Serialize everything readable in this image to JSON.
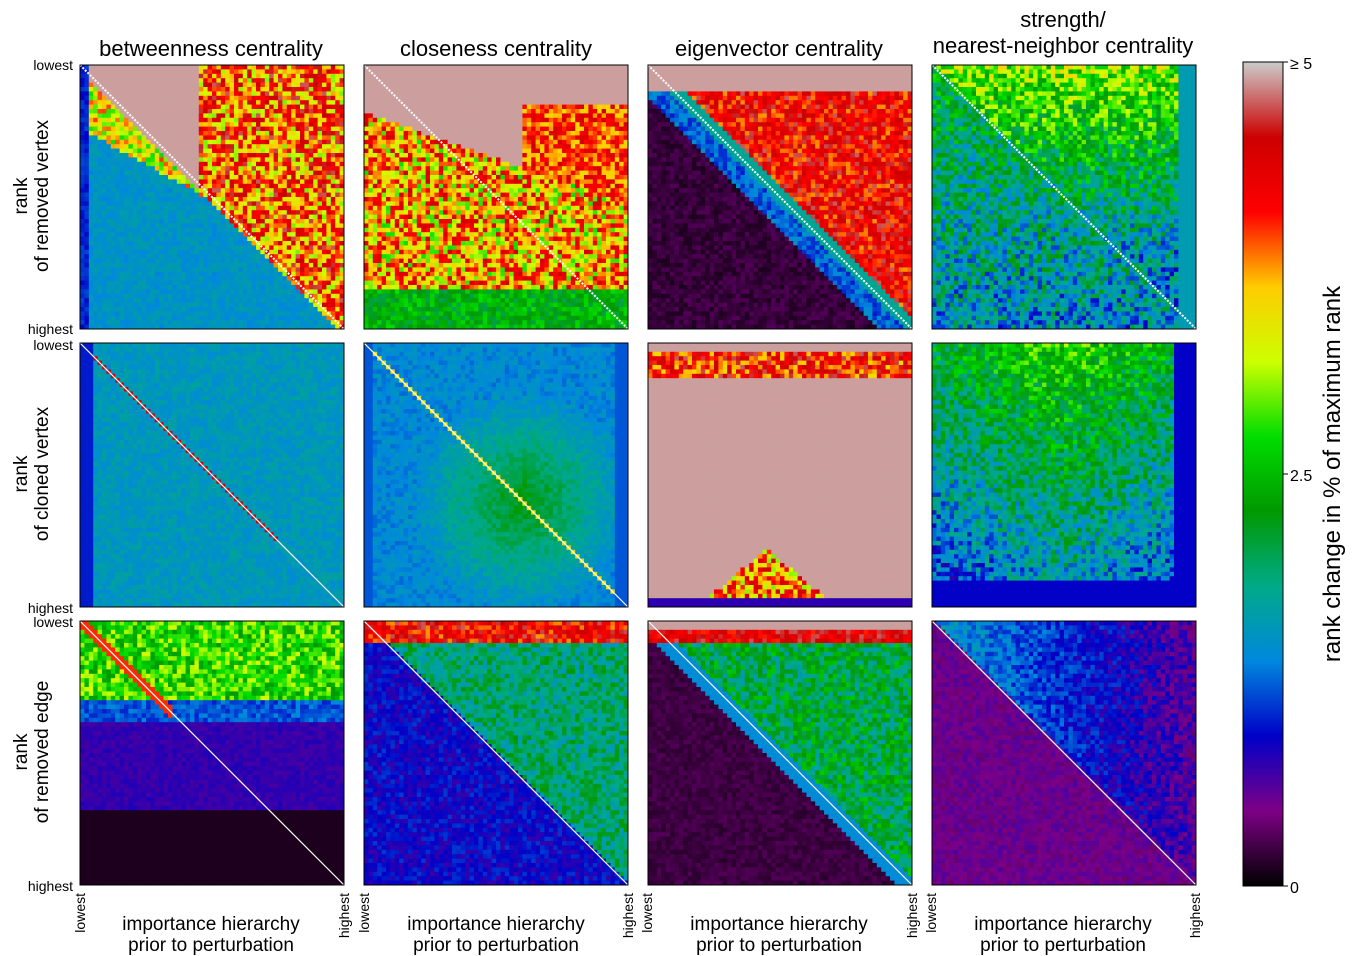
{
  "chart_data": {
    "type": "heatmap",
    "columns": [
      {
        "title_lines": [
          "betweenness centrality"
        ]
      },
      {
        "title_lines": [
          "closeness centrality"
        ]
      },
      {
        "title_lines": [
          "eigenvector centrality"
        ]
      },
      {
        "title_lines": [
          "strength/",
          "nearest-neighbor centrality"
        ]
      }
    ],
    "rows": [
      {
        "ylabel": [
          "rank",
          "of removed vertex"
        ]
      },
      {
        "ylabel": [
          "rank",
          "of cloned vertex"
        ]
      },
      {
        "ylabel": [
          "rank",
          "of removed edge"
        ]
      }
    ],
    "y_tick_labels": {
      "top": "lowest",
      "bottom": "highest"
    },
    "x_tick_labels": {
      "left": "lowest",
      "right": "highest"
    },
    "xlabel": [
      "importance hierarchy",
      "prior to perturbation"
    ],
    "colorbar": {
      "label": "rank change in % of maximum rank",
      "ticks": [
        {
          "value": 0,
          "label": "0"
        },
        {
          "value": 2.5,
          "label": "2.5"
        },
        {
          "value": 5,
          "label": "≥ 5"
        }
      ],
      "range": [
        0,
        5
      ],
      "colormap": "nipy_spectral",
      "stops": [
        "#000000",
        "#7d0085",
        "#0000c8",
        "#0088dd",
        "#00aa88",
        "#009900",
        "#00dd00",
        "#ccff00",
        "#ffcc00",
        "#ff0000",
        "#cc0000",
        "#cccccc"
      ]
    },
    "panels": [
      {
        "row": 0,
        "col": 0,
        "pattern": "betweenness-removed-vertex"
      },
      {
        "row": 0,
        "col": 1,
        "pattern": "closeness-removed-vertex"
      },
      {
        "row": 0,
        "col": 2,
        "pattern": "eigenvector-removed-vertex"
      },
      {
        "row": 0,
        "col": 3,
        "pattern": "strength-removed-vertex"
      },
      {
        "row": 1,
        "col": 0,
        "pattern": "betweenness-cloned-vertex"
      },
      {
        "row": 1,
        "col": 1,
        "pattern": "closeness-cloned-vertex"
      },
      {
        "row": 1,
        "col": 2,
        "pattern": "eigenvector-cloned-vertex"
      },
      {
        "row": 1,
        "col": 3,
        "pattern": "strength-cloned-vertex"
      },
      {
        "row": 2,
        "col": 0,
        "pattern": "betweenness-removed-edge"
      },
      {
        "row": 2,
        "col": 1,
        "pattern": "closeness-removed-edge"
      },
      {
        "row": 2,
        "col": 2,
        "pattern": "eigenvector-removed-edge"
      },
      {
        "row": 2,
        "col": 3,
        "pattern": "strength-removed-edge"
      }
    ]
  }
}
